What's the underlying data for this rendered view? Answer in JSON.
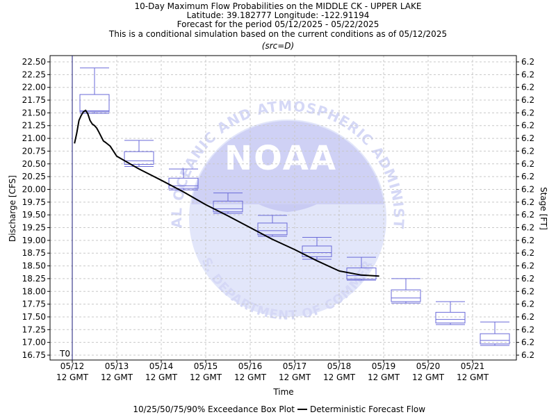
{
  "chart_data": {
    "type": "box",
    "title_lines": [
      "10-Day Maximum Flow Probabilities on the MIDDLE CK - UPPER LAKE",
      "Latitude: 39.182777 Longitude: -122.91194",
      "Forecast for the period 05/12/2025 - 05/22/2025",
      "This is a conditional simulation based on the current conditions as of 05/12/2025"
    ],
    "subtitle": "(src=D)",
    "xlabel": "Time",
    "ylabel": "Discharge [CFS]",
    "y2label": "Stage [FT]",
    "ylim": [
      16.75,
      22.5
    ],
    "ytick_step": 0.25,
    "y_ticks": [
      "16.75",
      "17.00",
      "17.25",
      "17.50",
      "17.75",
      "18.00",
      "18.25",
      "18.50",
      "18.75",
      "19.00",
      "19.25",
      "19.50",
      "19.75",
      "20.00",
      "20.25",
      "20.50",
      "20.75",
      "21.00",
      "21.25",
      "21.50",
      "21.75",
      "22.00",
      "22.25",
      "22.50"
    ],
    "y2_tick_label": "6.2",
    "x_ticks": [
      {
        "date": "05/12",
        "time": "12 GMT"
      },
      {
        "date": "05/13",
        "time": "12 GMT"
      },
      {
        "date": "05/14",
        "time": "12 GMT"
      },
      {
        "date": "05/15",
        "time": "12 GMT"
      },
      {
        "date": "05/16",
        "time": "12 GMT"
      },
      {
        "date": "05/17",
        "time": "12 GMT"
      },
      {
        "date": "05/18",
        "time": "12 GMT"
      },
      {
        "date": "05/19",
        "time": "12 GMT"
      },
      {
        "date": "05/20",
        "time": "12 GMT"
      },
      {
        "date": "05/21",
        "time": "12 GMT"
      }
    ],
    "t0_label": "T0",
    "grid": true,
    "boxes": [
      {
        "day": 0.5,
        "p10": 21.49,
        "p25": 21.52,
        "p50": 21.54,
        "p75": 21.86,
        "p90": 22.38
      },
      {
        "day": 1.5,
        "p10": 20.45,
        "p25": 20.49,
        "p50": 20.56,
        "p75": 20.74,
        "p90": 20.96
      },
      {
        "day": 2.5,
        "p10": 19.99,
        "p25": 20.02,
        "p50": 20.07,
        "p75": 20.22,
        "p90": 20.4
      },
      {
        "day": 3.5,
        "p10": 19.53,
        "p25": 19.56,
        "p50": 19.62,
        "p75": 19.77,
        "p90": 19.93
      },
      {
        "day": 4.5,
        "p10": 19.08,
        "p25": 19.11,
        "p50": 19.19,
        "p75": 19.34,
        "p90": 19.49
      },
      {
        "day": 5.5,
        "p10": 18.63,
        "p25": 18.68,
        "p50": 18.76,
        "p75": 18.89,
        "p90": 19.06
      },
      {
        "day": 6.5,
        "p10": 18.22,
        "p25": 18.24,
        "p50": 18.31,
        "p75": 18.46,
        "p90": 18.67
      },
      {
        "day": 7.5,
        "p10": 17.77,
        "p25": 17.8,
        "p50": 17.87,
        "p75": 18.03,
        "p90": 18.25
      },
      {
        "day": 8.5,
        "p10": 17.35,
        "p25": 17.38,
        "p50": 17.45,
        "p75": 17.59,
        "p90": 17.8
      },
      {
        "day": 9.5,
        "p10": 16.94,
        "p25": 16.97,
        "p50": 17.04,
        "p75": 17.17,
        "p90": 17.4
      }
    ],
    "deterministic": {
      "name": "Deterministic Forecast Flow",
      "color": "#000000",
      "x": [
        0.05,
        0.1,
        0.15,
        0.2,
        0.25,
        0.3,
        0.35,
        0.4,
        0.45,
        0.5,
        0.55,
        0.6,
        0.7,
        0.75,
        0.85,
        1.0,
        1.2,
        1.5,
        2.0,
        2.5,
        3.0,
        3.5,
        4.0,
        4.5,
        5.0,
        5.5,
        6.0,
        6.5,
        6.9
      ],
      "y": [
        20.9,
        21.1,
        21.35,
        21.45,
        21.52,
        21.55,
        21.48,
        21.35,
        21.28,
        21.25,
        21.2,
        21.12,
        20.95,
        20.92,
        20.85,
        20.65,
        20.55,
        20.4,
        20.18,
        19.95,
        19.7,
        19.48,
        19.25,
        19.02,
        18.82,
        18.6,
        18.4,
        18.32,
        18.3
      ]
    },
    "legend": {
      "box_label": "10/25/50/75/90% Exceedance Box Plot",
      "line_label": "Deterministic Forecast Flow",
      "placement": "bottom-center"
    },
    "colors": {
      "box": "#6a6ad8",
      "grid": "#c8c8c8",
      "axis": "#000000",
      "t0_line": "#1a1a7a",
      "watermark": "#e2e6fa"
    },
    "watermark": {
      "wordmark": "NOAA",
      "arc_top": "NATIONAL OCEANIC AND ATMOSPHERIC ADMINISTRATION",
      "arc_bottom": "U.S. DEPARTMENT OF COMMERCE"
    }
  }
}
